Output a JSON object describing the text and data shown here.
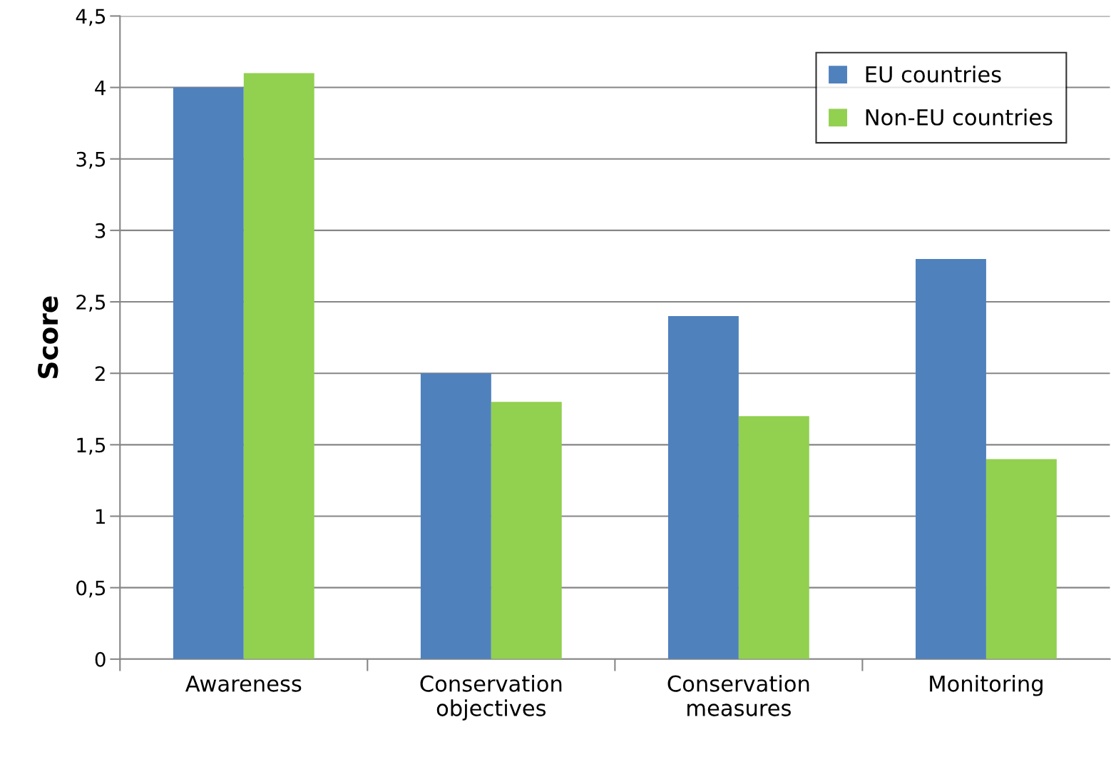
{
  "chart_data": {
    "type": "bar",
    "ylabel": "Score",
    "categories": [
      "Awareness",
      "Conservation\nobjectives",
      "Conservation\nmeasures",
      "Monitoring"
    ],
    "series": [
      {
        "name": "EU countries",
        "color": "#4f81bd",
        "values": [
          4.0,
          2.0,
          2.4,
          2.8
        ]
      },
      {
        "name": "Non-EU countries",
        "color": "#92d050",
        "values": [
          4.1,
          1.8,
          1.7,
          1.4
        ]
      }
    ],
    "ylim": [
      0,
      4.5
    ],
    "yticks": [
      0,
      {
        "value": 0.5,
        "label": "0,5"
      },
      1,
      {
        "value": 1.5,
        "label": "1,5"
      },
      2,
      {
        "value": 2.5,
        "label": "2,5"
      },
      3,
      {
        "value": 3.5,
        "label": "3,5"
      },
      4,
      {
        "value": 4.5,
        "label": "4,5"
      }
    ],
    "grid": "y",
    "legend": "top right"
  }
}
